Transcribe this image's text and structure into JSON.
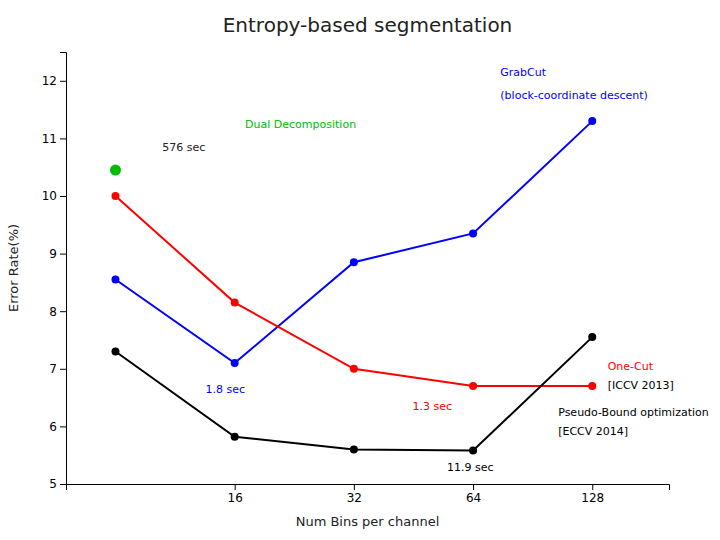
{
  "chart_data": {
    "type": "line",
    "title": "Entropy-based segmentation",
    "x_label": "Num Bins per channel",
    "y_label": "Error Rate(%)",
    "log": "x",
    "grid": false,
    "xlim": [
      6,
      200
    ],
    "xticks": [
      16,
      32,
      64,
      128
    ],
    "ylim": [
      5,
      12.5
    ],
    "yticks": [
      5,
      6,
      7,
      8,
      9,
      10,
      11,
      12
    ],
    "series": [
      {
        "type": "line",
        "marker": "circle",
        "color": "#0000ff",
        "x": [
          8,
          16,
          32,
          64,
          128
        ],
        "values": [
          8.55,
          7.1,
          8.85,
          9.35,
          11.3
        ]
      },
      {
        "type": "line",
        "marker": "circle",
        "color": "#ff0000",
        "x": [
          8,
          16,
          32,
          64,
          128
        ],
        "values": [
          10.0,
          8.15,
          7.0,
          6.7,
          6.7
        ]
      },
      {
        "type": "line",
        "marker": "circle",
        "color": "#000000",
        "x": [
          8,
          16,
          32,
          64,
          128
        ],
        "values": [
          7.3,
          5.82,
          5.6,
          5.58,
          7.55
        ]
      },
      {
        "type": "scatter",
        "marker": "circle",
        "color": "#00bb00",
        "x": [
          8
        ],
        "values": [
          10.45
        ]
      }
    ],
    "annotations": [
      {
        "text": "GrabCut",
        "x": 75,
        "y": 12.15,
        "color": "#0000ff"
      },
      {
        "text": "(block-coordinate descent)",
        "x": 75,
        "y": 11.75,
        "color": "#0000ff"
      },
      {
        "text": "Dual Decomposition",
        "x": 17,
        "y": 11.25,
        "color": "#00bb00"
      },
      {
        "text": "576 sec",
        "x": 10.5,
        "y": 10.85,
        "color": "#222222"
      },
      {
        "text": "1.8 sec",
        "x": 13.5,
        "y": 6.65,
        "color": "#0000ff"
      },
      {
        "text": "1.3 sec",
        "x": 45,
        "y": 6.35,
        "color": "#ff0000"
      },
      {
        "text": "11.9 sec",
        "x": 55,
        "y": 5.3,
        "color": "#000000"
      },
      {
        "text": "One-Cut",
        "x": 140,
        "y": 7.05,
        "color": "#ff0000"
      },
      {
        "text": "[ICCV 2013]",
        "x": 140,
        "y": 6.72,
        "color": "#000000"
      },
      {
        "text": "Pseudo-Bound optimization",
        "x": 105,
        "y": 6.25,
        "color": "#000000"
      },
      {
        "text": "[ECCV 2014]",
        "x": 105,
        "y": 5.92,
        "color": "#000000"
      }
    ]
  }
}
